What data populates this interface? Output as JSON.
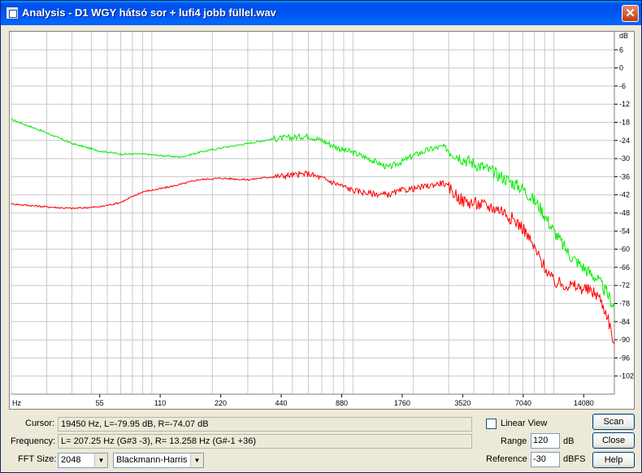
{
  "window": {
    "title": "Analysis - D1 WGY hátsó sor + lufi4 jobb füllel.wav"
  },
  "graph": {
    "db_unit": "dB",
    "db_ticks": [
      "6",
      "0",
      "-6",
      "-12",
      "-18",
      "-24",
      "-30",
      "-36",
      "-42",
      "-48",
      "-54",
      "-60",
      "-66",
      "-72",
      "-78",
      "-84",
      "-90",
      "-96",
      "-102"
    ],
    "hz_unit": "Hz",
    "hz_ticks": [
      "55",
      "110",
      "220",
      "440",
      "880",
      "1760",
      "3520",
      "7040",
      "14080"
    ],
    "colors": {
      "left": "#ff0000",
      "right": "#00ee00",
      "grid": "#c8c8c8"
    }
  },
  "chart_data": {
    "type": "line",
    "xlabel": "Hz",
    "ylabel": "dB",
    "x_scale": "log",
    "ylim": [
      -108,
      12
    ],
    "grid": true,
    "series": [
      {
        "color": "#00ee00",
        "x": [
          20,
          30,
          40,
          55,
          70,
          90,
          110,
          140,
          170,
          220,
          300,
          400,
          500,
          600,
          700,
          880,
          1000,
          1200,
          1500,
          1760,
          2000,
          2400,
          2800,
          3520,
          4500,
          5500,
          7040,
          8500,
          10000,
          12000,
          14000,
          16500,
          18500,
          20000
        ],
        "y": [
          -17,
          -21.5,
          -25,
          -27.5,
          -28.5,
          -28.5,
          -29,
          -29.5,
          -28,
          -26.5,
          -25,
          -23.5,
          -23,
          -22.5,
          -24,
          -27,
          -28,
          -30,
          -33,
          -31,
          -29,
          -27,
          -26,
          -30,
          -33,
          -36,
          -40,
          -46,
          -54,
          -62,
          -66,
          -70,
          -75,
          -79
        ]
      },
      {
        "color": "#ff0000",
        "x": [
          20,
          30,
          40,
          55,
          70,
          90,
          110,
          140,
          170,
          220,
          300,
          400,
          500,
          600,
          700,
          880,
          1000,
          1200,
          1500,
          1760,
          2000,
          2400,
          2800,
          3520,
          4500,
          5500,
          7040,
          8500,
          10000,
          12000,
          14000,
          16500,
          18500,
          20000
        ],
        "y": [
          -45,
          -46,
          -46.5,
          -46,
          -44.5,
          -41,
          -40,
          -38.5,
          -37,
          -36.5,
          -37,
          -36,
          -35.5,
          -35,
          -36.5,
          -39,
          -40.5,
          -41.5,
          -42,
          -40.5,
          -40,
          -39,
          -38,
          -44,
          -45.5,
          -47,
          -53,
          -63,
          -71,
          -72,
          -73,
          -75,
          -82,
          -92
        ]
      }
    ]
  },
  "controls": {
    "cursor_label": "Cursor:",
    "cursor_value": "19450 Hz, L=-79.95 dB, R=-74.07 dB",
    "frequency_label": "Frequency:",
    "frequency_value": "L= 207.25 Hz (G#3 -3), R= 13.258 Hz (G#-1 +36)",
    "fft_label": "FFT Size:",
    "fft_value": "2048",
    "window_value": "Blackmann-Harris",
    "linear_view_label": "Linear View",
    "linear_view_checked": false,
    "range_label": "Range",
    "range_value": "120",
    "range_unit": "dB",
    "reference_label": "Reference",
    "reference_value": "-30",
    "reference_unit": "dBFS",
    "scan_label": "Scan",
    "close_label": "Close",
    "help_label": "Help"
  }
}
